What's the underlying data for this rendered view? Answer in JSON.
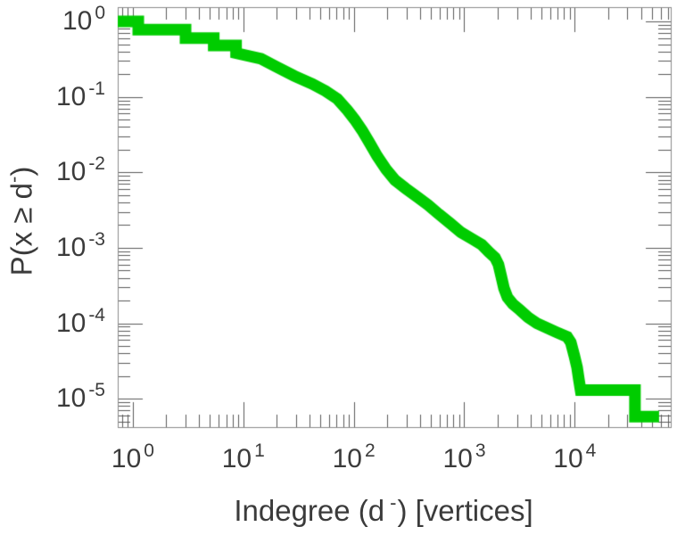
{
  "figure": {
    "background": "#ffffff"
  },
  "chart_data": {
    "type": "line",
    "title": "",
    "xlabel": "Indegree (d-) [vertices]",
    "ylabel": "P(x >= d-)",
    "x_scale": "log",
    "y_scale": "log",
    "xlim": [
      0.73,
      74000
    ],
    "ylim": [
      4.2e-06,
      1.55
    ],
    "grid": false,
    "legend": "none",
    "x_ticks": [
      {
        "value": 1,
        "base": "10",
        "exp": "0"
      },
      {
        "value": 10,
        "base": "10",
        "exp": "1"
      },
      {
        "value": 100,
        "base": "10",
        "exp": "2"
      },
      {
        "value": 1000,
        "base": "10",
        "exp": "3"
      },
      {
        "value": 10000,
        "base": "10",
        "exp": "4"
      }
    ],
    "y_ticks": [
      {
        "value": 1,
        "base": "10",
        "exp": "0"
      },
      {
        "value": 0.1,
        "base": "10",
        "exp": "-1"
      },
      {
        "value": 0.01,
        "base": "10",
        "exp": "-2"
      },
      {
        "value": 0.001,
        "base": "10",
        "exp": "-3"
      },
      {
        "value": 0.0001,
        "base": "10",
        "exp": "-4"
      },
      {
        "value": 1e-05,
        "base": "10",
        "exp": "-5"
      }
    ],
    "series": [
      {
        "name": "indegree-ccdf",
        "color": "#00cc00",
        "line_width": 13,
        "points": [
          [
            0.73,
            1.0
          ],
          [
            1.12,
            1.0
          ],
          [
            1.12,
            0.78
          ],
          [
            3.0,
            0.78
          ],
          [
            3.0,
            0.6
          ],
          [
            5.4,
            0.6
          ],
          [
            5.4,
            0.48
          ],
          [
            8.6,
            0.48
          ],
          [
            8.6,
            0.38
          ],
          [
            14.5,
            0.32
          ],
          [
            20.0,
            0.25
          ],
          [
            28.9,
            0.19
          ],
          [
            42.0,
            0.149
          ],
          [
            55.5,
            0.12
          ],
          [
            71,
            0.094
          ],
          [
            88,
            0.066
          ],
          [
            102,
            0.05
          ],
          [
            119,
            0.036
          ],
          [
            138,
            0.025
          ],
          [
            163,
            0.0164
          ],
          [
            196,
            0.011
          ],
          [
            236,
            0.0079
          ],
          [
            296,
            0.0061
          ],
          [
            377,
            0.0047
          ],
          [
            470,
            0.0037
          ],
          [
            588,
            0.0028
          ],
          [
            749,
            0.0021
          ],
          [
            936,
            0.0016
          ],
          [
            1190,
            0.0013
          ],
          [
            1440,
            0.0011
          ],
          [
            1670,
            0.00088
          ],
          [
            1900,
            0.00074
          ],
          [
            2040,
            0.0006
          ],
          [
            2160,
            0.00042
          ],
          [
            2290,
            0.00029
          ],
          [
            2460,
            0.00022
          ],
          [
            2750,
            0.00018
          ],
          [
            3190,
            0.00015
          ],
          [
            3780,
            0.00012
          ],
          [
            4550,
            0.0001
          ],
          [
            5580,
            8.7e-05
          ],
          [
            6840,
            7.6e-05
          ],
          [
            8550,
            6.6e-05
          ],
          [
            9210,
            5.6e-05
          ],
          [
            9920,
            3.7e-05
          ],
          [
            10500,
            2.6e-05
          ],
          [
            10900,
            1.8e-05
          ],
          [
            11300,
            1.3e-05
          ],
          [
            35100,
            1.3e-05
          ],
          [
            35100,
            5.8e-06
          ],
          [
            58000,
            5.8e-06
          ]
        ]
      }
    ]
  },
  "labels": {
    "xlabel_segments": [
      {
        "t": "Indegree (d"
      },
      {
        "t": "-",
        "sup": true
      },
      {
        "t": ") [vertices]"
      }
    ],
    "ylabel_segments": [
      {
        "t": "P(x ≥ d"
      },
      {
        "t": "-",
        "sup": true
      },
      {
        "t": ")"
      }
    ]
  }
}
